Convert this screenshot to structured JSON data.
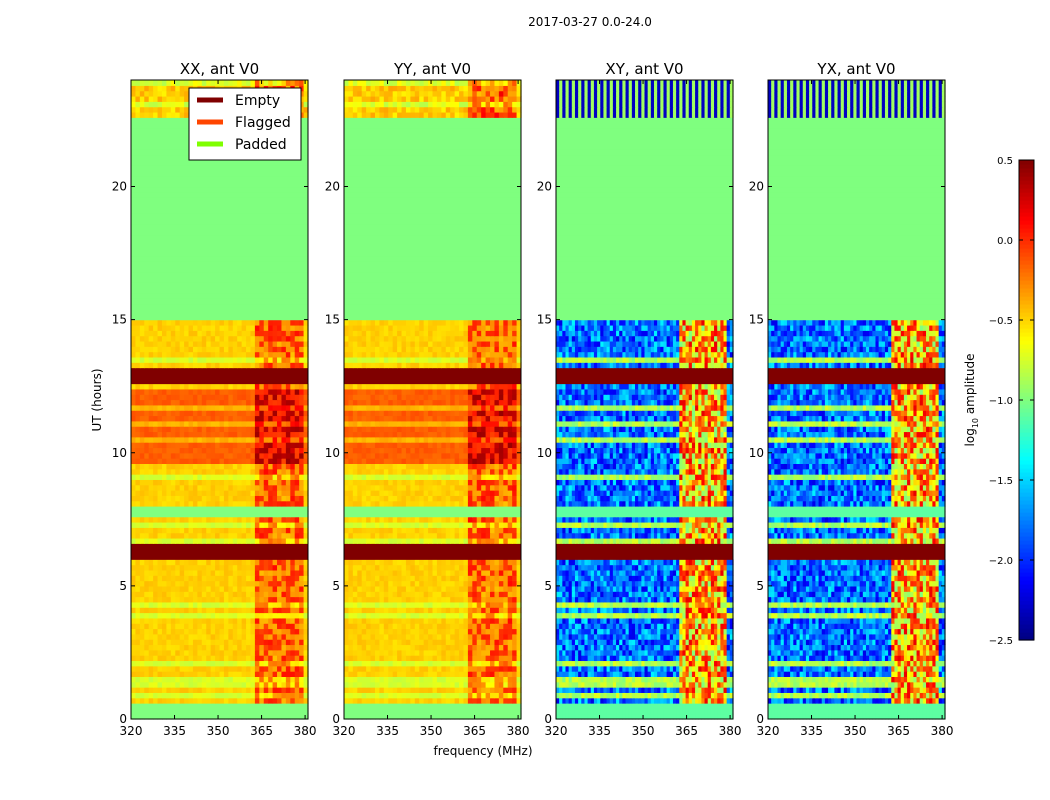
{
  "figure": {
    "suptitle": "2017-03-27 0.0-24.0",
    "xlabel": "frequency (MHz)",
    "ylabel": "UT (hours)"
  },
  "chart_data": {
    "type": "heatmap",
    "x": {
      "min": 320,
      "max": 381,
      "ticks": [
        320,
        335,
        350,
        365,
        380
      ]
    },
    "y": {
      "min": 0,
      "max": 24,
      "ticks": [
        0,
        5,
        10,
        15,
        20
      ]
    },
    "panels": [
      {
        "title": "XX, ant V0",
        "kind": "auto"
      },
      {
        "title": "YY, ant V0",
        "kind": "auto"
      },
      {
        "title": "XY, ant V0",
        "kind": "cross"
      },
      {
        "title": "YX, ant V0",
        "kind": "cross"
      }
    ],
    "legend": {
      "placement": "top-right of first panel",
      "entries": [
        {
          "label": "Empty",
          "color": "#800000"
        },
        {
          "label": "Flagged",
          "color": "#ff4500"
        },
        {
          "label": "Padded",
          "color": "#7fff00"
        }
      ]
    },
    "colorbar": {
      "label_prefix": "log",
      "label_sub": "10",
      "label_suffix": " amplitude",
      "min": -2.5,
      "max": 0.5,
      "ticks": [
        {
          "v": 0.5,
          "t": "0.5"
        },
        {
          "v": 0.0,
          "t": "0.0"
        },
        {
          "v": -0.5,
          "t": "−0.5"
        },
        {
          "v": -1.0,
          "t": "−1.0"
        },
        {
          "v": -1.5,
          "t": "−1.5"
        },
        {
          "v": -2.0,
          "t": "−2.0"
        },
        {
          "v": -2.5,
          "t": "−2.5"
        }
      ]
    },
    "padded_region_ut": [
      15.0,
      22.6
    ],
    "empty_rows_ut": [
      [
        12.6,
        13.1
      ],
      [
        6.1,
        6.5
      ]
    ],
    "rfi_band_mhz": [
      363,
      379
    ]
  }
}
